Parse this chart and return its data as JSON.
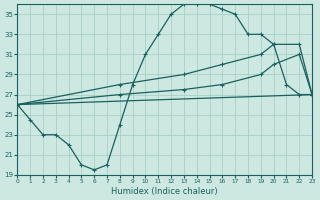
{
  "xlabel": "Humidex (Indice chaleur)",
  "bg_color": "#cce8e0",
  "grid_color": "#a8cfc8",
  "line_color": "#1a6060",
  "xlim": [
    0,
    23
  ],
  "ylim": [
    19,
    36
  ],
  "xticks": [
    0,
    1,
    2,
    3,
    4,
    5,
    6,
    7,
    8,
    9,
    10,
    11,
    12,
    13,
    14,
    15,
    16,
    17,
    18,
    19,
    20,
    21,
    22,
    23
  ],
  "yticks": [
    19,
    21,
    23,
    25,
    27,
    29,
    31,
    33,
    35
  ],
  "line1_x": [
    0,
    1,
    2,
    3,
    4,
    5,
    6,
    7,
    8,
    9,
    10,
    11,
    12,
    13,
    14,
    15,
    16,
    17,
    18,
    19,
    20,
    21,
    22,
    23
  ],
  "line1_y": [
    26,
    24.5,
    23,
    23,
    22,
    20,
    19.5,
    20,
    24,
    28,
    31,
    33,
    35,
    36,
    36,
    36,
    35.5,
    35,
    33,
    33,
    32,
    28,
    27,
    27
  ],
  "line2_x": [
    0,
    23
  ],
  "line2_y": [
    26,
    27
  ],
  "line3_x": [
    0,
    8,
    13,
    16,
    19,
    20,
    22,
    23
  ],
  "line3_y": [
    26,
    28,
    29,
    30,
    31,
    32,
    32,
    27
  ],
  "line4_x": [
    0,
    8,
    13,
    16,
    19,
    20,
    22,
    23
  ],
  "line4_y": [
    26,
    27,
    27.5,
    28,
    29,
    30,
    31,
    27
  ]
}
